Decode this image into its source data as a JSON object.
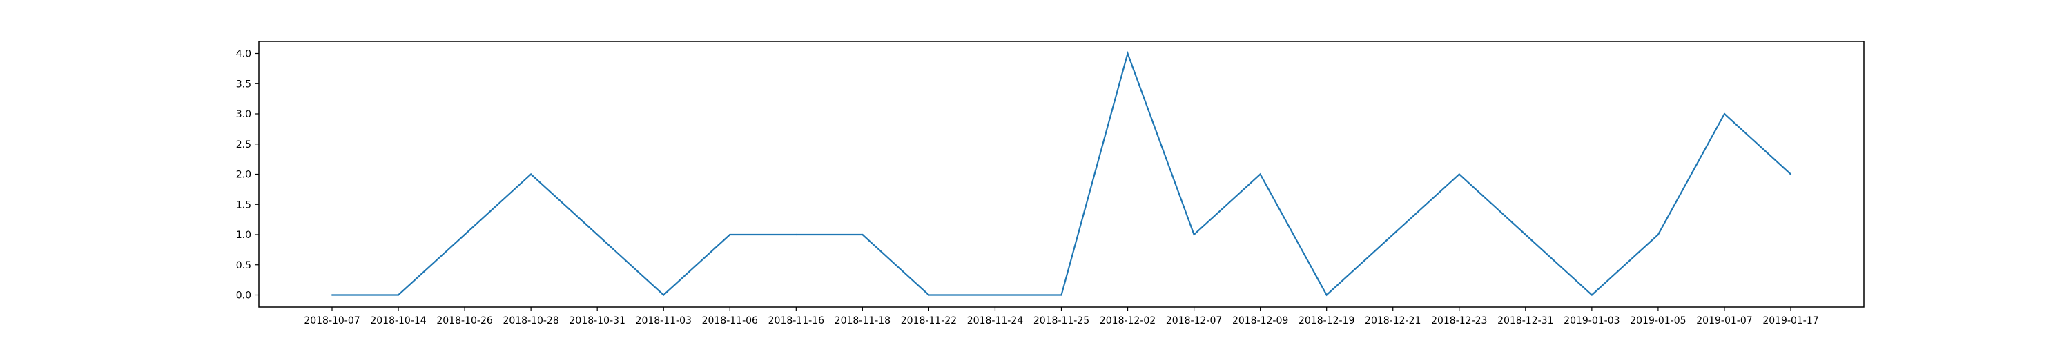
{
  "chart_data": {
    "type": "line",
    "title": "",
    "xlabel": "",
    "ylabel": "",
    "x": [
      "2018-10-07",
      "2018-10-14",
      "2018-10-26",
      "2018-10-28",
      "2018-10-31",
      "2018-11-03",
      "2018-11-06",
      "2018-11-16",
      "2018-11-18",
      "2018-11-22",
      "2018-11-24",
      "2018-11-25",
      "2018-12-02",
      "2018-12-07",
      "2018-12-09",
      "2018-12-19",
      "2018-12-21",
      "2018-12-23",
      "2018-12-31",
      "2019-01-03",
      "2019-01-05",
      "2019-01-07",
      "2019-01-17"
    ],
    "y": [
      0,
      0,
      1,
      2,
      1,
      0,
      1,
      1,
      1,
      0,
      0,
      0,
      4,
      1,
      2,
      0,
      1,
      2,
      1,
      0,
      1,
      3,
      2
    ],
    "yticks": [
      "0.0",
      "0.5",
      "1.0",
      "1.5",
      "2.0",
      "2.5",
      "3.0",
      "3.5",
      "4.0"
    ],
    "ytick_values": [
      0,
      0.5,
      1,
      1.5,
      2,
      2.5,
      3,
      3.5,
      4
    ],
    "ylim": [
      -0.2,
      4.2
    ],
    "grid": false,
    "legend": "none",
    "line_color": "#1f77b4"
  }
}
